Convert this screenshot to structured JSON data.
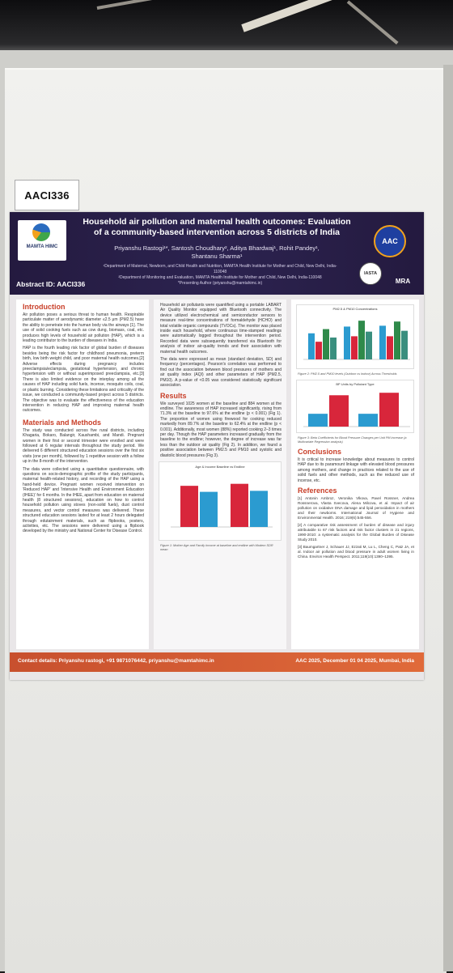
{
  "booth_tag": "AACI336",
  "poster": {
    "title_line1": "Household air pollution and maternal health outcomes: Evaluation",
    "title_line2": "of a community-based intervention across 5 districts of India",
    "authors_line1": "Priyanshu Rastogi¹*, Santosh Choudhary², Aditya Bhardwaj¹, Rohit Pandey¹,",
    "authors_line2": "Shantanu Sharma¹",
    "affiliation1": "¹Department of Maternal, Newborn, and Child Health and Nutrition, MAMTA Health Institute for Mother and Child, New Delhi, India-110048",
    "affiliation2": "²Department of Monitoring and Evaluation, MAMTA Health Institute for Mother and Child, New Delhi, India-110048",
    "presenting": "*Presenting Author (priyanshu@mamtahimc.in)",
    "abstract_id": "Abstract ID: AACI336",
    "logo_left": "MAMTA HIMC",
    "logo_right": "AAC",
    "logo_small1": "IASTA",
    "logo_small2": "MRA",
    "introduction": {
      "heading": "Introduction",
      "p1": "Air pollution poses a serious threat to human health. Respirable particulate matter of aerodynamic diameter ≤2.5 μm (PM2.5) have the ability to penetrate into the human body via the airways [1]. The use of solid cooking fuels such as cow dung, biomass, coal, etc. produces high levels of household air pollution (HAP), which is a leading contributor to the burden of diseases in India.",
      "p2": "HAP is the fourth leading risk factor of global burden of diseases besides being the risk factor for childhood pneumonia, preterm birth, low birth weight child, and poor maternal health outcomes.[2] Adverse effects during pregnancy includes preeclampsia/eclampsia, gestational hypertension, and chronic hypertension with or without superimposed preeclampsia, etc.[3] There is also limited evidence on the interplay among all the causes of HAP including solid fuels, incense, mosquito coils, coal, or plastic burning. Considering these limitations and criticality of the issue, we conducted a community-based project across 5 districts. The objective was to evaluate the effectiveness of the education intervention in reducing HAP and improving maternal health outcomes."
    },
    "methods": {
      "heading": "Materials and Methods",
      "p1": "The study was conducted across five rural districts, including Khagaria, Bokaro, Balangir, Kaushambi, and Mandi. Pregnant women in their first or second trimester were enrolled and were followed at 6 regular intervals throughout the study period. We delivered 6 different structured education sessions over the first six visits (one per month), followed by 1 repetitive session with a follow up in the 8-month of the intervention.",
      "p2": "The data were collected using a quantitative questionnaire, with questions on socio-demographic profile of the study participants, maternal health-related history, and recording of the HAP using a hand-held device. Pregnant women received intervention on 'Reduced HAP' and 'Intensive Health and Environment Education (IHEE)' for 6 months. In the IHEE, apart from education on maternal health (8 structured sessions), education on how to control household pollution using stoves (non-solid fuels), dust control measures, and vector control measures was delivered. These structured education sessions lasted for at least 2 hours delegated through edutainment materials, such as flipbooks, posters, activities, etc. The sessions were delivered using a flipbook developed by the ministry and National Center for Disease Control."
    },
    "methods_cont": {
      "p1": "Household air pollutants were quantified using a portable LABART Air Quality Monitor equipped with Bluetooth connectivity. The device utilized electrochemical and semiconductor sensors to measure real-time concentrations of formaldehyde (HCHO) and total volatile organic compounds (TVOCs). The monitor was placed inside each household, where continuous time-stamped readings were automatically logged throughout the intervention period. Recorded data were subsequently transferred via Bluetooth for analysis of indoor air-quality trends and their association with maternal health outcomes.",
      "p2": "The data were expressed as mean (standard deviation, SD) and frequency (percentages). Pearson's correlation was performed to find out the association between blood pressures of mothers and air quality index (AQI) and other parameters of HAP (PM2.5, PM10). A p-value of <0.05 was considered statistically significant association."
    },
    "results": {
      "heading": "Results",
      "p1": "We surveyed 1025 women at the baseline and 884 women at the endline. The awareness of HAP increased significantly, rising from 71.3% at the baseline to 97.6% at the endline (p < 0.001) (Fig 1). The proportion of women using firewood for cooking reduced markedly from 89.7% at the baseline to 62.4% at the endline (p < 0.001). Additionally, most women (88%) reported cooking 2–3 times per day. Though the HAP parameters increased gradually from the baseline to the endline; however, the degree of increase was far less than the outdoor air quality (Fig 2). In addition, we found a positive association between PM2.5 and PM10 and systolic and diastolic blood pressures (Fig 3)."
    },
    "fig1_title": "Age & Income Baseline vs Endline",
    "fig1_caption": "Figure 1: Mother Age and Family Income at baseline and endline with Modern SDR mean",
    "fig2_title": "PM2.5 & PM10 Concentrations",
    "fig2_caption": "Figure 2: PM2.5 and PM10 levels (Outdoor vs Indoor) Across Thresholds",
    "fig3_title": "BP Units by Pollutant Type",
    "fig3_caption": "Figure 3: Beta Coefficients for Blood Pressure Changes per Unit PM increase (a Multivariate Regression analysis)",
    "conclusions": {
      "heading": "Conclusions",
      "p1": "It is critical to increase knowledge about measures to control HAP due to its paramount linkage with elevated blood pressures among mothers, and change in practices related to the use of solid fuels and other methods, such as the reduced use of incense, etc."
    },
    "references": {
      "heading": "References",
      "r1": "[1] Antonin Ambroz, Veronika Vlkova, Pavel Rossner, Andrea Rossnerova, Vlasta Svecova, Alena Milcova, et al. Impact of air pollution on oxidative DNA damage and lipid peroxidation in mothers and their newborns. International Journal of Hygiene and Environmental Health. 2016; 219(6):545-556.",
      "r2": "[2] A comparative risk assessment of burden of disease and injury attributable to 67 risk factors and risk factor clusters in 21 regions, 1990-2010: a systematic analysis for the Global Burden of Disease Study 2010.",
      "r3": "[3] Baumgartner J, Schauer JJ, Ezzati M, Lu L, Cheng C, Patz JA, et al. Indoor air pollution and blood pressure in adult women living in China. Environ Health Perspect. 2011;119(10):1390–1395."
    },
    "footer_left": "Contact details: Priyanshu rastogi, +91 9871076442, priyanshu@mamtahimc.in",
    "footer_right": "AAC 2025, December 01 04 2025, Mumbai, India"
  },
  "colors": {
    "header": "#2a2150",
    "accent": "#c9402a",
    "bar_red": "#d8263b",
    "bar_blue": "#2b9bd0",
    "bar_teal": "#3a8f7e",
    "bar_green": "#2f8a4a"
  },
  "charts": {
    "fig1": [
      {
        "group": 1,
        "values": [
          0.82,
          0.7
        ]
      },
      {
        "group": 2,
        "values": [
          0.86,
          0.72
        ]
      }
    ],
    "fig2": [
      [
        0.62,
        0.42,
        0.72,
        0.52
      ],
      [
        0.78,
        0.55,
        0.92,
        0.66
      ],
      [
        0.8,
        0.55,
        0.9,
        0.68
      ]
    ],
    "fig3": [
      0.36,
      0.88,
      0.36,
      0.95
    ]
  }
}
